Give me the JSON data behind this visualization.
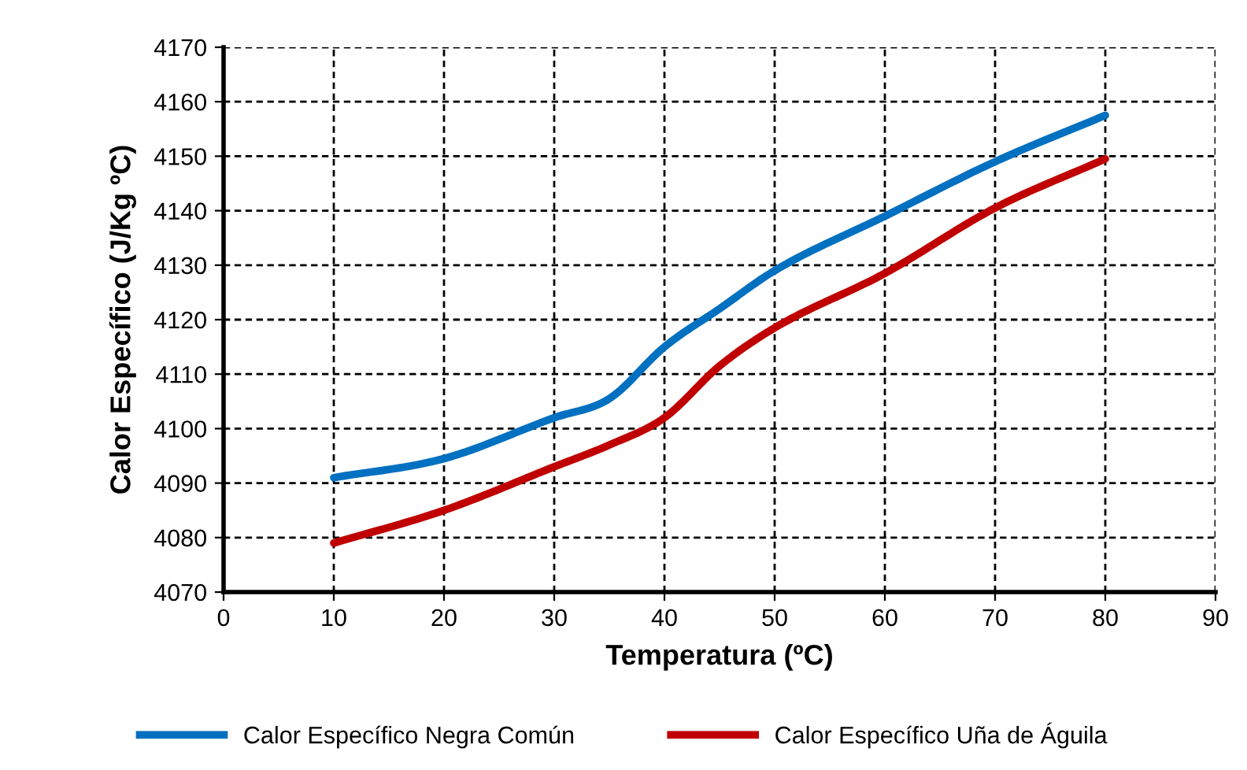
{
  "chart_data": {
    "type": "line",
    "xlabel": "Temperatura (ºC)",
    "ylabel": "Calor Específico (J/Kg ºC)",
    "xlim": [
      0,
      90
    ],
    "xticks": [
      0,
      10,
      20,
      30,
      40,
      50,
      60,
      70,
      80,
      90
    ],
    "ylim": [
      4070,
      4170
    ],
    "yticks": [
      4070,
      4080,
      4090,
      4100,
      4110,
      4120,
      4130,
      4140,
      4150,
      4160,
      4170
    ],
    "grid": true,
    "legend": "bottom",
    "marker": "none",
    "line_style": "solid",
    "series": [
      {
        "name": "Calor Específico Negra Común",
        "color": "#0070c0",
        "x": [
          10,
          20,
          30,
          35,
          40,
          45,
          50,
          60,
          70,
          80
        ],
        "values": [
          4091,
          4094.5,
          4102,
          4105.5,
          4115,
          4122,
          4129,
          4139,
          4149,
          4157.5
        ]
      },
      {
        "name": "Calor Específico Uña de Águila",
        "color": "#c00000",
        "x": [
          10,
          20,
          30,
          35,
          40,
          45,
          50,
          60,
          70,
          80
        ],
        "values": [
          4079,
          4085,
          4093,
          4097,
          4102,
          4111.5,
          4118.5,
          4128.5,
          4140.5,
          4149.5
        ]
      }
    ]
  }
}
